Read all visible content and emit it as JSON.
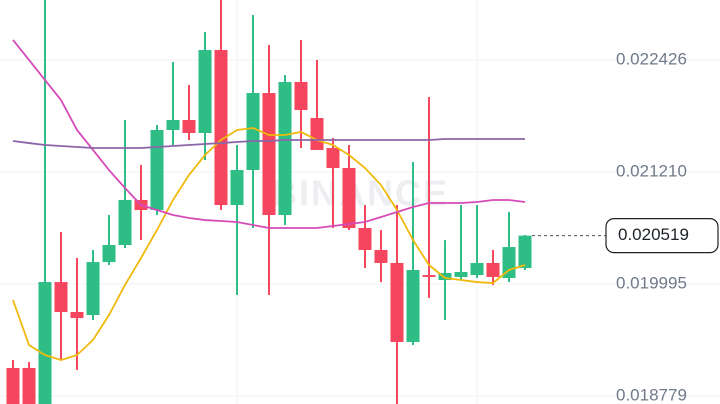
{
  "chart_data": {
    "type": "candlestick",
    "watermark": "BINANCE",
    "open": [
      0.019082,
      0.019082,
      0.018691,
      0.020015,
      0.01969,
      0.019657,
      0.020232,
      0.020417,
      0.020906,
      0.020797,
      0.021666,
      0.021774,
      0.021633,
      0.022534,
      0.020851,
      0.021231,
      0.022067,
      0.020743,
      0.022187,
      0.021796,
      0.02147,
      0.021253,
      0.020602,
      0.020363,
      0.020222,
      0.019364,
      0.020091,
      0.020037,
      0.02007,
      0.020091,
      0.020222,
      0.020059,
      0.020167
    ],
    "high": [
      0.019168,
      0.019147,
      0.023077,
      0.020558,
      0.020276,
      0.020363,
      0.020743,
      0.021774,
      0.021286,
      0.02172,
      0.022404,
      0.022154,
      0.02273,
      0.023077,
      0.021503,
      0.022914,
      0.022588,
      0.022263,
      0.022643,
      0.022426,
      0.021579,
      0.021503,
      0.020851,
      0.02058,
      0.020851,
      0.021318,
      0.022024,
      0.020471,
      0.020851,
      0.020851,
      0.020363,
      0.020775,
      0.020526
    ],
    "low": [
      0.018691,
      0.018691,
      0.018691,
      0.019168,
      0.01906,
      0.019603,
      0.0202,
      0.020384,
      0.020471,
      0.020743,
      0.021503,
      0.021557,
      0.02134,
      0.020797,
      0.019874,
      0.020602,
      0.019874,
      0.020634,
      0.02147,
      0.021449,
      0.020602,
      0.02058,
      0.020167,
      0.020015,
      0.018691,
      0.019331,
      0.019842,
      0.019603,
      0.020037,
      0.020059,
      0.019983,
      0.020015,
      0.020146
    ],
    "close": [
      0.018691,
      0.018691,
      0.020015,
      0.01969,
      0.019624,
      0.020232,
      0.020417,
      0.020906,
      0.020797,
      0.021666,
      0.021774,
      0.021633,
      0.022534,
      0.020851,
      0.021231,
      0.022067,
      0.020743,
      0.022187,
      0.021883,
      0.021449,
      0.021253,
      0.020602,
      0.020363,
      0.020222,
      0.019364,
      0.020146,
      0.02007,
      0.020113,
      0.020124,
      0.020222,
      0.02007,
      0.020395,
      0.020519
    ],
    "up_color": "#2ebd85",
    "down_color": "#f6465d",
    "series": [
      {
        "color": "#f0b90b",
        "values": [
          0.01982,
          0.019331,
          0.019223,
          0.019168,
          0.019223,
          0.019386,
          0.019657,
          0.019983,
          0.020276,
          0.02058,
          0.020906,
          0.021177,
          0.021394,
          0.021557,
          0.021666,
          0.021687,
          0.021611,
          0.021611,
          0.021644,
          0.021557,
          0.021503,
          0.021394,
          0.021253,
          0.021068,
          0.020797,
          0.020471,
          0.0202,
          0.020059,
          0.020037,
          0.020015,
          0.020004,
          0.020146,
          0.0202
        ]
      },
      {
        "color": "#d64bb8",
        "values": [
          0.022643,
          0.022426,
          0.022208,
          0.021991,
          0.021666,
          0.021449,
          0.021231,
          0.021036,
          0.020851,
          0.020797,
          0.020743,
          0.02071,
          0.020688,
          0.020678,
          0.020667,
          0.020634,
          0.020602,
          0.020602,
          0.020602,
          0.020602,
          0.020623,
          0.020645,
          0.020667,
          0.020721,
          0.020775,
          0.02083,
          0.020873,
          0.020873,
          0.020873,
          0.020884,
          0.020906,
          0.020906,
          0.020884
        ]
      },
      {
        "color": "#8c64a8",
        "values": [
          0.021546,
          0.021524,
          0.021503,
          0.021492,
          0.021481,
          0.02147,
          0.02147,
          0.02147,
          0.02147,
          0.021481,
          0.021492,
          0.021503,
          0.021514,
          0.021524,
          0.021535,
          0.021546,
          0.021546,
          0.021557,
          0.021557,
          0.021557,
          0.021557,
          0.021557,
          0.021557,
          0.021557,
          0.021557,
          0.021557,
          0.021557,
          0.021568,
          0.021568,
          0.021568,
          0.021568,
          0.021568,
          0.021568
        ]
      }
    ],
    "ylim": [
      0.018691,
      0.023077
    ],
    "yticks": [
      0.018779,
      0.019995,
      {
        "value": 0.02121,
        "label": "0.021210"
      },
      0.022426
    ],
    "grid": true,
    "current_price": 0.020519
  }
}
